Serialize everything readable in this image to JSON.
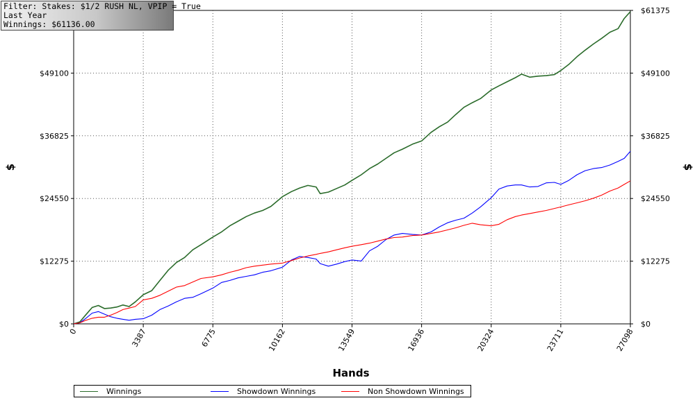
{
  "info_box": {
    "filter": "Filter: Stakes: $1/2 RUSH NL, VPIP = True",
    "period": "Last Year",
    "winnings": "Winnings: $61136.00"
  },
  "chart_data": {
    "type": "line",
    "title": "",
    "xlabel": "Hands",
    "ylabel": "$",
    "xlim": [
      0,
      27098
    ],
    "ylim": [
      0,
      61375
    ],
    "x_ticks": [
      0,
      3387,
      6775,
      10162,
      13549,
      16936,
      20324,
      23711,
      27098
    ],
    "y_ticks": [
      0,
      12275,
      24550,
      36825,
      49100,
      61375
    ],
    "y_tick_labels": [
      "$0",
      "$12275",
      "$24550",
      "$36825",
      "$49100",
      "$61375"
    ],
    "grid": true,
    "legend_position": "bottom",
    "series": [
      {
        "name": "Winnings",
        "color": "#2a6b2a",
        "x": [
          0,
          300,
          600,
          900,
          1200,
          1500,
          1800,
          2100,
          2400,
          2700,
          3000,
          3387,
          3800,
          4200,
          4600,
          5000,
          5400,
          5800,
          6200,
          6775,
          7200,
          7600,
          8000,
          8400,
          8800,
          9200,
          9600,
          10162,
          10600,
          11000,
          11400,
          11800,
          12000,
          12400,
          12800,
          13200,
          13549,
          14000,
          14400,
          14800,
          15200,
          15600,
          16000,
          16500,
          16936,
          17400,
          17800,
          18200,
          18600,
          19000,
          19400,
          19800,
          20324,
          20700,
          21100,
          21500,
          21800,
          22200,
          22600,
          23000,
          23400,
          23711,
          24100,
          24500,
          24900,
          25300,
          25700,
          26100,
          26500,
          26800,
          27098
        ],
        "y": [
          0,
          400,
          1800,
          3200,
          3600,
          3000,
          3100,
          3300,
          3700,
          3400,
          4300,
          5700,
          6500,
          8500,
          10500,
          12000,
          13000,
          14500,
          15500,
          17000,
          18000,
          19200,
          20100,
          21000,
          21700,
          22200,
          23000,
          24900,
          25900,
          26600,
          27100,
          26800,
          25500,
          25800,
          26500,
          27200,
          28100,
          29200,
          30400,
          31300,
          32400,
          33500,
          34200,
          35200,
          35800,
          37500,
          38600,
          39500,
          41000,
          42400,
          43300,
          44100,
          45800,
          46600,
          47400,
          48200,
          48900,
          48300,
          48500,
          48600,
          48800,
          49600,
          50800,
          52300,
          53600,
          54800,
          55900,
          57100,
          57800,
          59800,
          61136
        ]
      },
      {
        "name": "Showdown Winnings",
        "color": "#0000ff",
        "x": [
          0,
          300,
          600,
          900,
          1200,
          1500,
          1800,
          2100,
          2400,
          2700,
          3000,
          3387,
          3800,
          4200,
          4600,
          5000,
          5400,
          5800,
          6200,
          6775,
          7200,
          7600,
          8000,
          8400,
          8800,
          9200,
          9600,
          10162,
          10600,
          11000,
          11400,
          11800,
          12000,
          12400,
          12800,
          13200,
          13549,
          14000,
          14400,
          14800,
          15200,
          15600,
          16000,
          16500,
          16936,
          17400,
          17800,
          18200,
          18600,
          19000,
          19400,
          19800,
          20324,
          20700,
          21100,
          21500,
          21800,
          22200,
          22600,
          23000,
          23400,
          23711,
          24100,
          24500,
          24900,
          25300,
          25700,
          26100,
          26500,
          26800,
          27098
        ],
        "y": [
          0,
          200,
          1100,
          2100,
          2400,
          1900,
          1400,
          1100,
          900,
          700,
          900,
          1000,
          1700,
          2800,
          3500,
          4300,
          5000,
          5200,
          5900,
          7000,
          8100,
          8500,
          9000,
          9300,
          9600,
          10100,
          10400,
          11100,
          12500,
          13200,
          13000,
          12700,
          11800,
          11300,
          11700,
          12200,
          12500,
          12300,
          14300,
          15200,
          16500,
          17400,
          17700,
          17500,
          17400,
          18000,
          19000,
          19800,
          20300,
          20700,
          21700,
          22900,
          24700,
          26400,
          27000,
          27200,
          27200,
          26800,
          26900,
          27600,
          27700,
          27300,
          28100,
          29200,
          30000,
          30400,
          30600,
          31100,
          31800,
          32400,
          33800
        ]
      },
      {
        "name": "Non Showdown Winnings",
        "color": "#ff0000",
        "x": [
          0,
          300,
          600,
          900,
          1200,
          1500,
          1800,
          2100,
          2400,
          2700,
          3000,
          3387,
          3800,
          4200,
          4600,
          5000,
          5400,
          5800,
          6200,
          6775,
          7200,
          7600,
          8000,
          8400,
          8800,
          9200,
          9600,
          10162,
          10600,
          11000,
          11400,
          11800,
          12000,
          12400,
          12800,
          13200,
          13549,
          14000,
          14400,
          14800,
          15200,
          15600,
          16000,
          16500,
          16936,
          17400,
          17800,
          18200,
          18600,
          19000,
          19400,
          19800,
          20324,
          20700,
          21100,
          21500,
          21800,
          22200,
          22600,
          23000,
          23400,
          23711,
          24100,
          24500,
          24900,
          25300,
          25700,
          26100,
          26500,
          26800,
          27098
        ],
        "y": [
          0,
          200,
          700,
          1100,
          1300,
          1300,
          1700,
          2200,
          2800,
          3100,
          3400,
          4700,
          5000,
          5600,
          6400,
          7200,
          7500,
          8200,
          8900,
          9200,
          9600,
          10100,
          10500,
          11000,
          11300,
          11500,
          11700,
          11900,
          12400,
          12900,
          13300,
          13600,
          13800,
          14100,
          14500,
          14900,
          15200,
          15500,
          15800,
          16200,
          16600,
          16900,
          17000,
          17300,
          17400,
          17700,
          18000,
          18400,
          18800,
          19300,
          19700,
          19400,
          19200,
          19500,
          20400,
          21000,
          21300,
          21600,
          21900,
          22200,
          22600,
          22900,
          23300,
          23700,
          24100,
          24600,
          25200,
          26000,
          26600,
          27300,
          28000
        ]
      }
    ]
  }
}
